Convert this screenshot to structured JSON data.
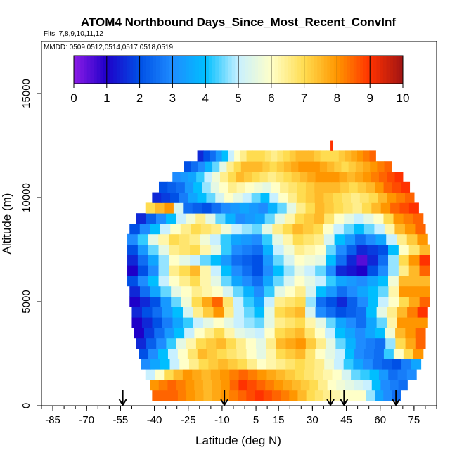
{
  "chart_data": {
    "type": "heatmap",
    "title": "ATOM4 Northbound Days_Since_Most_Recent_ConvInf",
    "flights_label": "Flts: 7,8,9,10,11,12",
    "dates_label": "MMDD: 0509,0512,0514,0517,0518,0519",
    "xlabel": "Latitude (deg N)",
    "ylabel": "Altitude (m)",
    "xlim": [
      -90,
      85
    ],
    "ylim": [
      0,
      17500
    ],
    "x_ticks": [
      "-85",
      "-70",
      "-55",
      "-40",
      "-25",
      "-10",
      "5",
      "15",
      "30",
      "45",
      "60",
      "75"
    ],
    "x_tick_values": [
      -85,
      -70,
      -55,
      -40,
      -25,
      -10,
      5,
      15,
      30,
      45,
      60,
      75
    ],
    "y_ticks": [
      "0",
      "5000",
      "10000",
      "15000"
    ],
    "y_tick_values": [
      0,
      5000,
      10000,
      15000
    ],
    "colorbar": {
      "min": 0,
      "max": 10,
      "tick_labels": [
        "0",
        "1",
        "2",
        "3",
        "4",
        "5",
        "6",
        "7",
        "8",
        "9",
        "10"
      ],
      "colors": [
        "#8c1ce6",
        "#1e00c8",
        "#0050e6",
        "#1e8cff",
        "#00beff",
        "#c8f0ff",
        "#ffffc8",
        "#ffdc50",
        "#ff9600",
        "#ff3200",
        "#a01414"
      ]
    },
    "arrow_latitudes": [
      -54,
      -9,
      38,
      44,
      67
    ],
    "altitude_rows": [
      {
        "altitude": 500,
        "lat_min": -41,
        "lat_max": 69,
        "profile": [
          8.5,
          8.5,
          8,
          7.5,
          8,
          8.5,
          9,
          8.5,
          8,
          7,
          6.5,
          6,
          6,
          3.5,
          2.5
        ]
      },
      {
        "altitude": 1000,
        "lat_min": -42,
        "lat_max": 72,
        "profile": [
          8,
          8.5,
          8,
          7.5,
          8,
          9,
          8.5,
          8,
          7.5,
          7,
          6,
          5.5,
          5,
          3,
          2.5
        ]
      },
      {
        "altitude": 1500,
        "lat_min": -44,
        "lat_max": 76,
        "profile": [
          5,
          7,
          8,
          7.5,
          8,
          8.5,
          8,
          7.5,
          7,
          6.5,
          6,
          4.5,
          4,
          2.5,
          3
        ]
      },
      {
        "altitude": 2000,
        "lat_min": -46,
        "lat_max": 78,
        "profile": [
          3,
          4,
          6,
          7,
          7.5,
          7,
          6,
          6.5,
          7,
          6.5,
          5,
          3.5,
          2.5,
          2,
          3.5
        ]
      },
      {
        "altitude": 2500,
        "lat_min": -47,
        "lat_max": 79,
        "profile": [
          2,
          4,
          6,
          7.5,
          7,
          6.5,
          5.5,
          7,
          7.5,
          6,
          5,
          3,
          2.5,
          6,
          8
        ]
      },
      {
        "altitude": 3000,
        "lat_min": -48,
        "lat_max": 80,
        "profile": [
          1.5,
          3,
          5.5,
          7,
          7.5,
          6.5,
          5.5,
          7.5,
          8,
          6.5,
          4.5,
          3,
          2.5,
          7,
          8.5
        ]
      },
      {
        "altitude": 3500,
        "lat_min": -49,
        "lat_max": 80,
        "profile": [
          1,
          2.5,
          4,
          6,
          7,
          5.5,
          5,
          7,
          7.5,
          6,
          4,
          3,
          4,
          7.5,
          8.5
        ]
      },
      {
        "altitude": 4000,
        "lat_min": -50,
        "lat_max": 81,
        "profile": [
          1,
          2,
          3.5,
          5,
          6,
          5,
          4.5,
          6.5,
          7,
          5.5,
          3.5,
          2.5,
          4.5,
          8,
          8
        ]
      },
      {
        "altitude": 4500,
        "lat_min": -50,
        "lat_max": 81,
        "profile": [
          1.5,
          2.5,
          4,
          6.5,
          8,
          5,
          4,
          7,
          7.5,
          3,
          2,
          2.5,
          5.5,
          7.5,
          9
        ]
      },
      {
        "altitude": 5000,
        "lat_min": -51,
        "lat_max": 82,
        "profile": [
          1,
          2,
          4.5,
          7,
          8.5,
          5,
          3.5,
          6.5,
          7,
          2.5,
          1.5,
          3,
          5,
          7,
          8.5
        ]
      },
      {
        "altitude": 5500,
        "lat_min": -51,
        "lat_max": 82,
        "profile": [
          1.5,
          3.5,
          5.5,
          6.5,
          6,
          4.5,
          3,
          5.5,
          6.5,
          4,
          2.5,
          3.5,
          4.5,
          8,
          8
        ]
      },
      {
        "altitude": 6000,
        "lat_min": -52,
        "lat_max": 82,
        "profile": [
          2,
          4,
          6,
          7,
          5.5,
          3.5,
          2.5,
          4.5,
          6,
          5,
          3.5,
          3,
          4,
          7.5,
          7.5
        ]
      },
      {
        "altitude": 6500,
        "lat_min": -52,
        "lat_max": 82,
        "profile": [
          1,
          3,
          6.5,
          7.5,
          5,
          3,
          2,
          4,
          5.5,
          4.5,
          1.5,
          1,
          3,
          6.5,
          8.5
        ]
      },
      {
        "altitude": 7000,
        "lat_min": -52,
        "lat_max": 82,
        "profile": [
          1.5,
          3.5,
          6,
          5,
          4,
          2.5,
          2,
          4.5,
          6,
          5.5,
          2.5,
          0.5,
          2.5,
          7,
          9
        ]
      },
      {
        "altitude": 7500,
        "lat_min": -52,
        "lat_max": 82,
        "profile": [
          2,
          4.5,
          6.5,
          7,
          5.5,
          3,
          2.5,
          5,
          6.5,
          6,
          3,
          1.5,
          2,
          6,
          7.5
        ]
      },
      {
        "altitude": 8000,
        "lat_min": -52,
        "lat_max": 81,
        "profile": [
          3,
          5.5,
          7,
          6.5,
          5,
          3.5,
          3,
          5.5,
          7,
          6.5,
          4,
          2.5,
          3.5,
          6.5,
          8
        ]
      },
      {
        "altitude": 8500,
        "lat_min": -51,
        "lat_max": 80,
        "profile": [
          2,
          4,
          6,
          7,
          6.5,
          5,
          4.5,
          6.5,
          7.5,
          7,
          5,
          4,
          5,
          7.5,
          8.5
        ]
      },
      {
        "altitude": 9000,
        "lat_min": -48,
        "lat_max": 79,
        "profile": [
          1.5,
          3,
          5,
          6.5,
          4.5,
          3,
          3.5,
          5.5,
          7,
          7.5,
          6,
          5,
          6,
          8,
          8.5
        ]
      },
      {
        "altitude": 9500,
        "lat_min": -44,
        "lat_max": 77,
        "profile": [
          7,
          8,
          2.5,
          2,
          3,
          3.5,
          3,
          4.5,
          6.5,
          7.5,
          7,
          6.5,
          7.5,
          8.5,
          9
        ]
      },
      {
        "altitude": 10000,
        "lat_min": -41,
        "lat_max": 75,
        "profile": [
          1.5,
          2,
          3.5,
          4.5,
          6,
          5,
          4,
          6,
          7,
          7.5,
          7,
          6.5,
          7,
          8,
          8.5
        ]
      },
      {
        "altitude": 10500,
        "lat_min": -38,
        "lat_max": 73,
        "profile": [
          2,
          2.5,
          4,
          5.5,
          6.5,
          6,
          5.5,
          6.5,
          7,
          7.5,
          7.5,
          7,
          7.5,
          8.5,
          9
        ]
      },
      {
        "altitude": 11000,
        "lat_min": -32,
        "lat_max": 70,
        "profile": [
          3,
          3.5,
          5,
          6.5,
          7.5,
          7,
          6.5,
          7,
          7.5,
          8,
          8,
          7.5,
          8,
          8.5,
          9
        ]
      },
      {
        "altitude": 11500,
        "lat_min": -27,
        "lat_max": 65,
        "profile": [
          2,
          3,
          4.5,
          6.5,
          7.5,
          7.5,
          7,
          7.5,
          8,
          8,
          7.5,
          7,
          7.5,
          8,
          8.5
        ]
      },
      {
        "altitude": 12000,
        "lat_min": -21,
        "lat_max": 58,
        "profile": [
          1.5,
          2.5,
          4,
          6,
          7,
          7,
          6.5,
          7,
          7.5,
          7.5,
          7,
          7,
          7.5,
          8,
          8.5
        ]
      },
      {
        "altitude": 12500,
        "lat_min": 38,
        "lat_max": 39,
        "profile": [
          9,
          9
        ]
      }
    ]
  }
}
